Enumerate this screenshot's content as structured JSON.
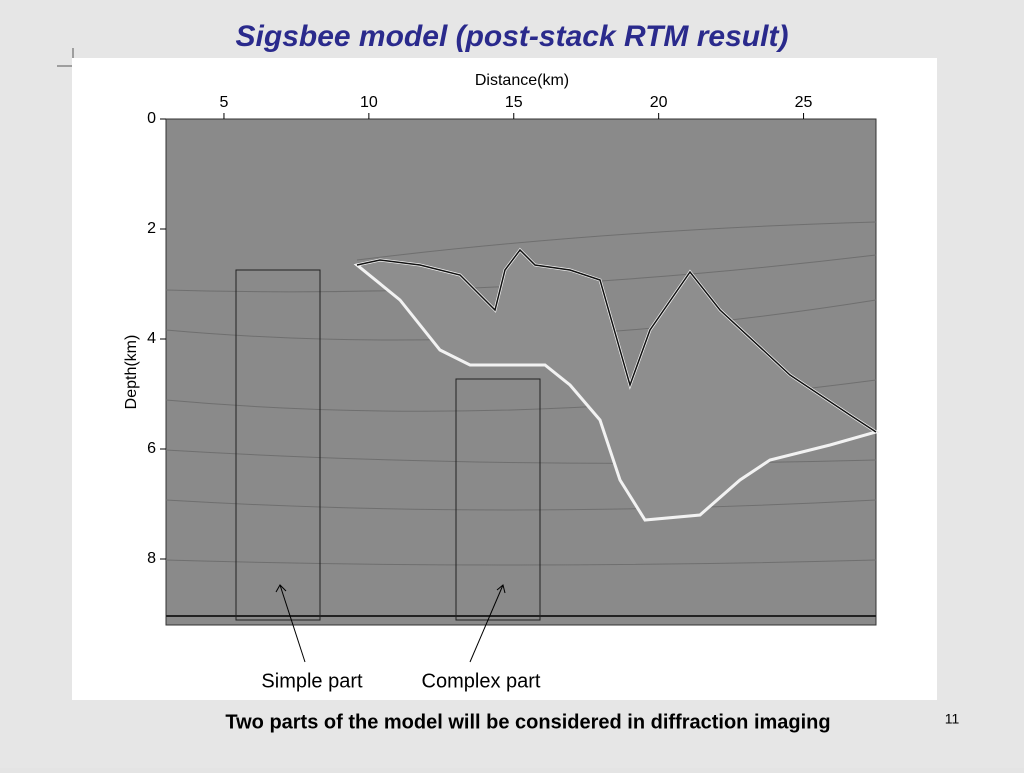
{
  "slide": {
    "title": "Sigsbee model (post-stack RTM result)",
    "figure": {
      "x_label": "Distance(km)",
      "y_label": "Depth(km)",
      "xlim": [
        3,
        27.5
      ],
      "ylim": [
        0,
        9.2
      ],
      "xticks": [
        5,
        10,
        15,
        20,
        25
      ],
      "yticks": [
        0,
        2,
        4,
        6,
        8
      ]
    },
    "annotations": [
      "Simple part",
      "Complex part"
    ],
    "caption": "Two parts of the model will be considered in diffraction imaging",
    "page_number": "11"
  }
}
